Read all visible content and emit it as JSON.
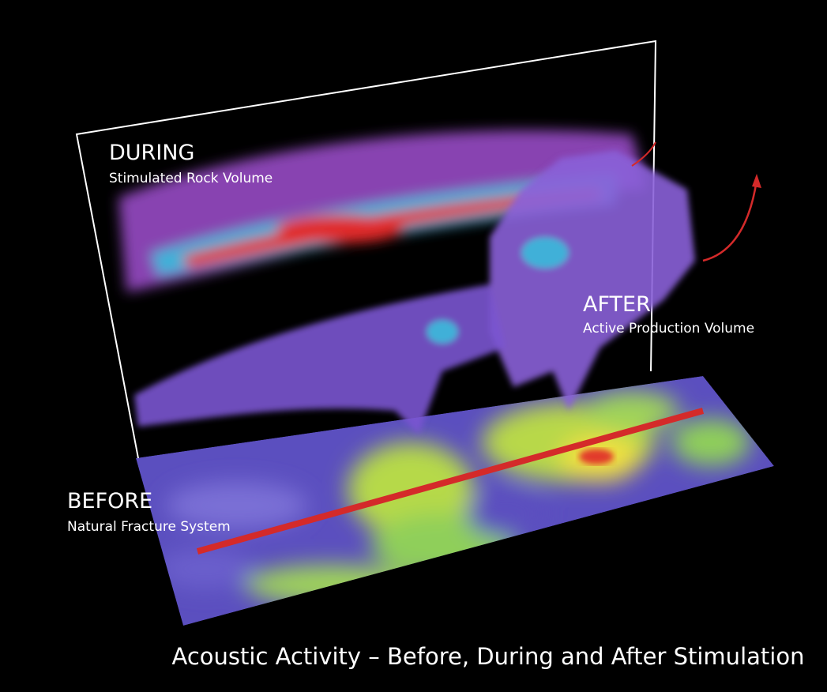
{
  "labels": [
    {
      "title": "DURING",
      "subtitle": "Stimulated Rock Volume"
    },
    {
      "title": "AFTER",
      "subtitle": "Active Production Volume"
    },
    {
      "title": "BEFORE",
      "subtitle": "Natural Fracture System"
    }
  ],
  "caption": "Acoustic Activity – Before, During and After Stimulation"
}
